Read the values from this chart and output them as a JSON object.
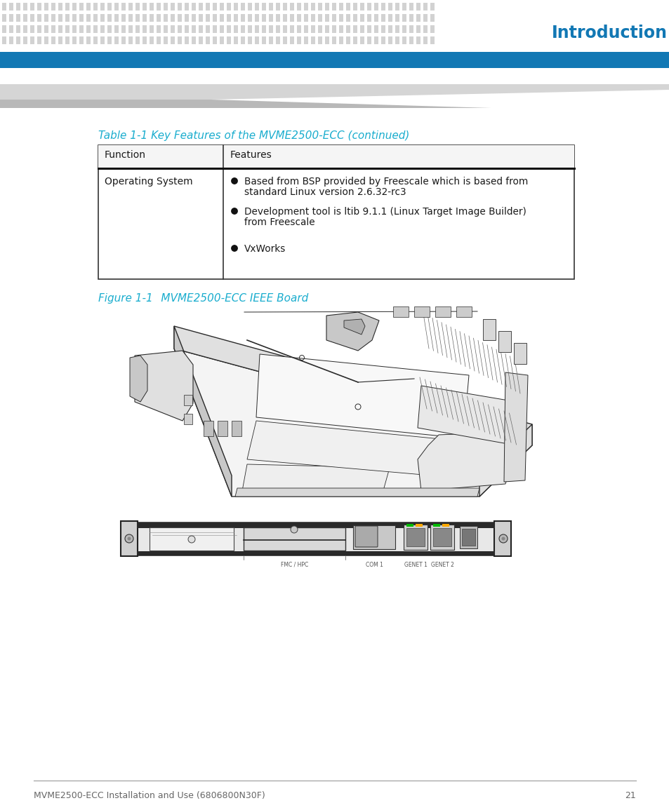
{
  "page_bg": "#ffffff",
  "header_dot_color": "#d2d2d2",
  "header_stripe_color": "#1278b4",
  "header_title": "Introduction",
  "header_title_color": "#1278b4",
  "table_caption": "Table 1-1 Key Features of the MVME2500-ECC (continued)",
  "table_caption_color": "#1aadce",
  "table_col1_header": "Function",
  "table_col2_header": "Features",
  "table_row1_col1": "Operating System",
  "bullet1_line1": "Based from BSP provided by Freescale which is based from",
  "bullet1_line2": "standard Linux version 2.6.32-rc3",
  "bullet2_line1": "Development tool is ltib 9.1.1 (Linux Target Image Builder)",
  "bullet2_line2": "from Freescale",
  "bullet3": "VxWorks",
  "figure_caption_prefix": "Figure 1-1",
  "figure_caption_main": "     MVME2500-ECC IEEE Board",
  "figure_caption_color": "#1aadce",
  "footer_text": "MVME2500-ECC Installation and Use (6806800N30F)",
  "footer_page": "21",
  "footer_color": "#666666",
  "text_color": "#1a1a1a",
  "line_color": "#333333",
  "board_line": "#2a2a2a",
  "board_fill_light": "#f4f4f4",
  "board_fill_mid": "#e0e0e0",
  "board_fill_dark": "#c8c8c8",
  "hatch_color": "#aaaaaa"
}
